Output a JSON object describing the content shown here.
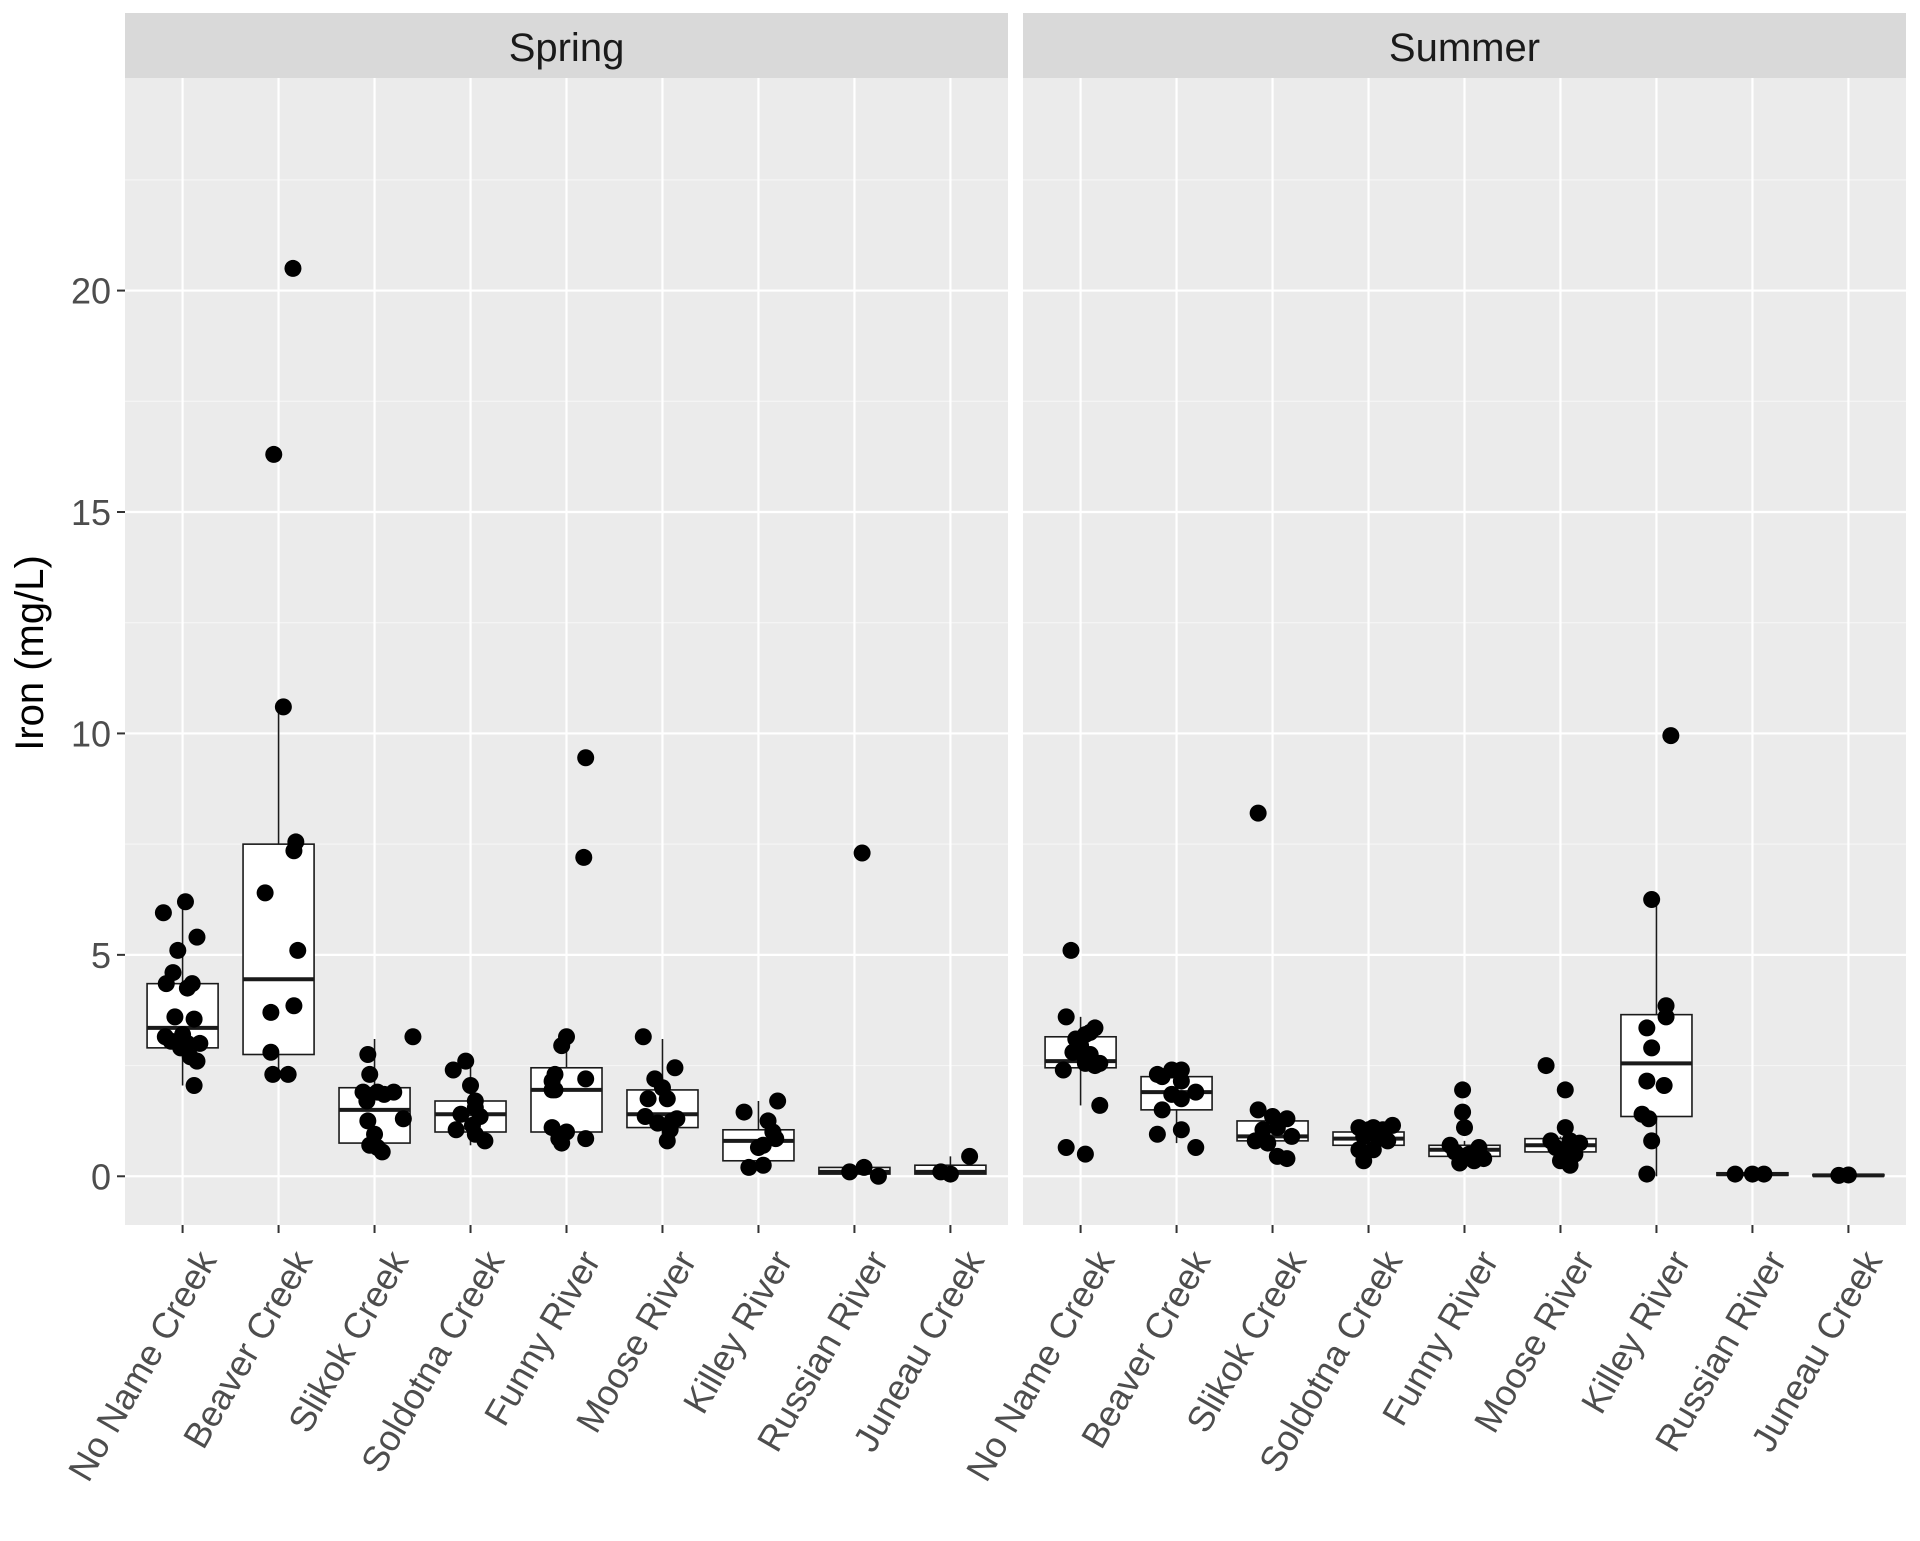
{
  "chart_data": {
    "type": "boxplot-with-jittered-points",
    "ylabel": "Iron (mg/L)",
    "xlabel": "",
    "ylim": [
      -1.1,
      24.8
    ],
    "yticks": [
      0,
      5,
      10,
      15,
      20
    ],
    "y_tick_labels": [
      "0",
      "5",
      "10",
      "15",
      "20"
    ],
    "categories": [
      "No Name Creek",
      "Beaver Creek",
      "Slikok Creek",
      "Soldotna Creek",
      "Funny River",
      "Moose River",
      "Killey River",
      "Russian River",
      "Juneau Creek"
    ],
    "colors": {
      "panel_bg": "#ebebeb",
      "grid_major": "#ffffff",
      "grid_minor": "#f5f5f5",
      "strip_bg": "#d9d9d9",
      "box_fill": "#ffffff",
      "box_line": "#1a1a1a",
      "point": "#000000",
      "tick_text": "#4d4d4d"
    },
    "panels": [
      {
        "title": "Spring",
        "groups": [
          {
            "category": "No Name Creek",
            "q1": 2.9,
            "median": 3.35,
            "q3": 4.35,
            "whisker_low": 2.05,
            "whisker_high": 6.2,
            "points": [
              [
                -0.2,
                5.95
              ],
              [
                0.03,
                6.2
              ],
              [
                -0.1,
                4.6
              ],
              [
                0.05,
                4.25
              ],
              [
                0.15,
                5.4
              ],
              [
                -0.05,
                5.1
              ],
              [
                0.1,
                4.35
              ],
              [
                -0.17,
                4.35
              ],
              [
                -0.08,
                3.6
              ],
              [
                0.12,
                3.55
              ],
              [
                -0.18,
                3.15
              ],
              [
                0.0,
                3.2
              ],
              [
                0.05,
                3.0
              ],
              [
                -0.12,
                3.05
              ],
              [
                0.18,
                3.0
              ],
              [
                0.08,
                2.7
              ],
              [
                0.15,
                2.6
              ],
              [
                0.12,
                2.05
              ],
              [
                -0.02,
                2.9
              ]
            ]
          },
          {
            "category": "Beaver Creek",
            "q1": 2.75,
            "median": 4.45,
            "q3": 7.5,
            "whisker_low": 2.25,
            "whisker_high": 10.6,
            "points": [
              [
                0.15,
                20.5
              ],
              [
                -0.05,
                16.3
              ],
              [
                0.05,
                10.6
              ],
              [
                0.18,
                7.55
              ],
              [
                0.16,
                7.35
              ],
              [
                -0.14,
                6.4
              ],
              [
                0.2,
                5.1
              ],
              [
                -0.08,
                3.7
              ],
              [
                0.16,
                3.85
              ],
              [
                -0.08,
                2.8
              ],
              [
                -0.06,
                2.3
              ],
              [
                0.1,
                2.3
              ]
            ]
          },
          {
            "category": "Slikok Creek",
            "q1": 0.75,
            "median": 1.5,
            "q3": 2.0,
            "whisker_low": 0.55,
            "whisker_high": 3.1,
            "points": [
              [
                0.4,
                3.15
              ],
              [
                -0.07,
                2.75
              ],
              [
                0.03,
                1.9
              ],
              [
                -0.05,
                2.3
              ],
              [
                -0.12,
                1.9
              ],
              [
                0.1,
                1.85
              ],
              [
                -0.08,
                1.7
              ],
              [
                0.3,
                1.3
              ],
              [
                -0.07,
                1.25
              ],
              [
                0.0,
                0.95
              ],
              [
                -0.05,
                0.7
              ],
              [
                0.08,
                0.55
              ],
              [
                0.03,
                0.65
              ],
              [
                0.2,
                1.9
              ]
            ]
          },
          {
            "category": "Soldotna Creek",
            "q1": 1.0,
            "median": 1.4,
            "q3": 1.7,
            "whisker_low": 0.7,
            "whisker_high": 2.6,
            "points": [
              [
                -0.18,
                2.4
              ],
              [
                -0.05,
                2.6
              ],
              [
                0.0,
                2.05
              ],
              [
                0.05,
                1.7
              ],
              [
                -0.1,
                1.4
              ],
              [
                0.1,
                1.35
              ],
              [
                0.02,
                1.15
              ],
              [
                -0.15,
                1.05
              ],
              [
                0.05,
                0.95
              ],
              [
                0.15,
                0.8
              ],
              [
                0.05,
                1.55
              ]
            ]
          },
          {
            "category": "Funny River",
            "q1": 1.0,
            "median": 1.95,
            "q3": 2.45,
            "whisker_low": 0.75,
            "whisker_high": 3.15,
            "points": [
              [
                0.2,
                9.45
              ],
              [
                0.18,
                7.2
              ],
              [
                0.0,
                3.15
              ],
              [
                -0.05,
                2.95
              ],
              [
                -0.12,
                2.3
              ],
              [
                -0.15,
                2.15
              ],
              [
                0.2,
                2.2
              ],
              [
                -0.15,
                1.95
              ],
              [
                -0.12,
                1.95
              ],
              [
                -0.15,
                1.1
              ],
              [
                0.0,
                1.0
              ],
              [
                -0.08,
                0.85
              ],
              [
                0.2,
                0.85
              ],
              [
                -0.05,
                0.75
              ]
            ]
          },
          {
            "category": "Moose River",
            "q1": 1.1,
            "median": 1.4,
            "q3": 1.95,
            "whisker_low": 0.75,
            "whisker_high": 3.1,
            "points": [
              [
                -0.2,
                3.15
              ],
              [
                0.13,
                2.45
              ],
              [
                -0.08,
                2.2
              ],
              [
                0.0,
                2.0
              ],
              [
                -0.15,
                1.75
              ],
              [
                0.05,
                1.75
              ],
              [
                -0.18,
                1.35
              ],
              [
                0.15,
                1.3
              ],
              [
                -0.05,
                1.2
              ],
              [
                0.08,
                1.05
              ],
              [
                0.1,
                1.25
              ],
              [
                0.05,
                0.8
              ]
            ]
          },
          {
            "category": "Killey River",
            "q1": 0.35,
            "median": 0.8,
            "q3": 1.05,
            "whisker_low": 0.15,
            "whisker_high": 1.7,
            "points": [
              [
                -0.15,
                1.45
              ],
              [
                0.2,
                1.7
              ],
              [
                0.1,
                1.25
              ],
              [
                0.18,
                0.85
              ],
              [
                0.05,
                0.7
              ],
              [
                0.0,
                0.65
              ],
              [
                0.05,
                0.25
              ],
              [
                -0.1,
                0.2
              ],
              [
                0.15,
                1.0
              ]
            ]
          },
          {
            "category": "Russian River",
            "q1": 0.05,
            "median": 0.1,
            "q3": 0.2,
            "whisker_low": 0.0,
            "whisker_high": 0.2,
            "points": [
              [
                0.08,
                7.3
              ],
              [
                0.1,
                0.2
              ],
              [
                -0.05,
                0.1
              ],
              [
                0.25,
                0.0
              ]
            ]
          },
          {
            "category": "Juneau Creek",
            "q1": 0.05,
            "median": 0.1,
            "q3": 0.25,
            "whisker_low": 0.0,
            "whisker_high": 0.45,
            "points": [
              [
                0.2,
                0.45
              ],
              [
                -0.1,
                0.1
              ],
              [
                0.0,
                0.05
              ]
            ]
          }
        ]
      },
      {
        "title": "Summer",
        "groups": [
          {
            "category": "No Name Creek",
            "q1": 2.45,
            "median": 2.6,
            "q3": 3.15,
            "whisker_low": 1.6,
            "whisker_high": 3.6,
            "points": [
              [
                -0.1,
                5.1
              ],
              [
                -0.15,
                3.6
              ],
              [
                0.05,
                3.2
              ],
              [
                0.15,
                3.35
              ],
              [
                0.1,
                3.25
              ],
              [
                -0.05,
                3.1
              ],
              [
                0.0,
                2.95
              ],
              [
                -0.08,
                2.8
              ],
              [
                0.1,
                2.75
              ],
              [
                0.15,
                2.5
              ],
              [
                0.05,
                2.55
              ],
              [
                -0.18,
                2.4
              ],
              [
                0.2,
                2.55
              ],
              [
                0.2,
                1.6
              ],
              [
                -0.15,
                0.65
              ],
              [
                0.05,
                0.5
              ],
              [
                0.0,
                2.85
              ],
              [
                0.05,
                2.65
              ]
            ]
          },
          {
            "category": "Beaver Creek",
            "q1": 1.5,
            "median": 1.9,
            "q3": 2.25,
            "whisker_low": 0.75,
            "whisker_high": 2.4,
            "points": [
              [
                -0.2,
                2.3
              ],
              [
                -0.05,
                2.4
              ],
              [
                0.05,
                2.4
              ],
              [
                -0.15,
                2.25
              ],
              [
                0.05,
                2.15
              ],
              [
                0.2,
                1.9
              ],
              [
                -0.05,
                1.85
              ],
              [
                0.05,
                1.75
              ],
              [
                -0.15,
                1.5
              ],
              [
                0.05,
                1.05
              ],
              [
                -0.2,
                0.95
              ],
              [
                0.2,
                0.65
              ]
            ]
          },
          {
            "category": "Slikok Creek",
            "q1": 0.8,
            "median": 0.9,
            "q3": 1.25,
            "whisker_low": 0.4,
            "whisker_high": 1.5,
            "points": [
              [
                -0.15,
                8.2
              ],
              [
                -0.15,
                1.5
              ],
              [
                0.0,
                1.35
              ],
              [
                0.15,
                1.3
              ],
              [
                -0.1,
                1.05
              ],
              [
                0.05,
                1.1
              ],
              [
                -0.18,
                0.8
              ],
              [
                0.2,
                0.9
              ],
              [
                -0.05,
                0.75
              ],
              [
                0.05,
                0.45
              ],
              [
                0.15,
                0.4
              ]
            ]
          },
          {
            "category": "Soldotna Creek",
            "q1": 0.7,
            "median": 0.85,
            "q3": 1.0,
            "whisker_low": 0.35,
            "whisker_high": 1.2,
            "points": [
              [
                -0.1,
                1.1
              ],
              [
                0.05,
                1.1
              ],
              [
                0.15,
                1.05
              ],
              [
                0.25,
                1.15
              ],
              [
                0.0,
                1.05
              ],
              [
                -0.05,
                0.9
              ],
              [
                0.1,
                0.85
              ],
              [
                0.2,
                0.8
              ],
              [
                -0.1,
                0.6
              ],
              [
                0.05,
                0.6
              ],
              [
                -0.05,
                0.35
              ]
            ]
          },
          {
            "category": "Funny River",
            "q1": 0.45,
            "median": 0.6,
            "q3": 0.7,
            "whisker_low": 0.25,
            "whisker_high": 0.8,
            "points": [
              [
                -0.02,
                1.95
              ],
              [
                -0.02,
                1.45
              ],
              [
                0.0,
                1.1
              ],
              [
                -0.15,
                0.7
              ],
              [
                0.15,
                0.65
              ],
              [
                -0.1,
                0.55
              ],
              [
                0.05,
                0.5
              ],
              [
                0.2,
                0.4
              ],
              [
                -0.05,
                0.3
              ],
              [
                0.1,
                0.35
              ]
            ]
          },
          {
            "category": "Moose River",
            "q1": 0.55,
            "median": 0.7,
            "q3": 0.85,
            "whisker_low": 0.25,
            "whisker_high": 0.9,
            "points": [
              [
                -0.15,
                2.5
              ],
              [
                0.05,
                1.95
              ],
              [
                0.05,
                1.1
              ],
              [
                -0.1,
                0.8
              ],
              [
                0.1,
                0.8
              ],
              [
                0.2,
                0.75
              ],
              [
                -0.05,
                0.65
              ],
              [
                0.05,
                0.55
              ],
              [
                0.15,
                0.5
              ],
              [
                0.0,
                0.35
              ],
              [
                0.1,
                0.25
              ]
            ]
          },
          {
            "category": "Killey River",
            "q1": 1.35,
            "median": 2.55,
            "q3": 3.65,
            "whisker_low": 0.0,
            "whisker_high": 6.25,
            "points": [
              [
                0.15,
                9.95
              ],
              [
                -0.05,
                6.25
              ],
              [
                0.1,
                3.85
              ],
              [
                -0.1,
                3.35
              ],
              [
                0.1,
                3.6
              ],
              [
                -0.05,
                2.9
              ],
              [
                0.08,
                2.05
              ],
              [
                -0.1,
                2.15
              ],
              [
                -0.15,
                1.4
              ],
              [
                -0.08,
                1.3
              ],
              [
                -0.05,
                0.8
              ],
              [
                -0.1,
                0.05
              ]
            ]
          },
          {
            "category": "Russian River",
            "q1": 0.02,
            "median": 0.05,
            "q3": 0.08,
            "whisker_low": 0.0,
            "whisker_high": 0.1,
            "points": [
              [
                -0.18,
                0.05
              ],
              [
                0.0,
                0.05
              ],
              [
                0.12,
                0.05
              ]
            ]
          },
          {
            "category": "Juneau Creek",
            "q1": 0.01,
            "median": 0.02,
            "q3": 0.04,
            "whisker_low": 0.0,
            "whisker_high": 0.05,
            "points": [
              [
                -0.1,
                0.02
              ],
              [
                0.0,
                0.03
              ]
            ]
          }
        ]
      }
    ]
  }
}
